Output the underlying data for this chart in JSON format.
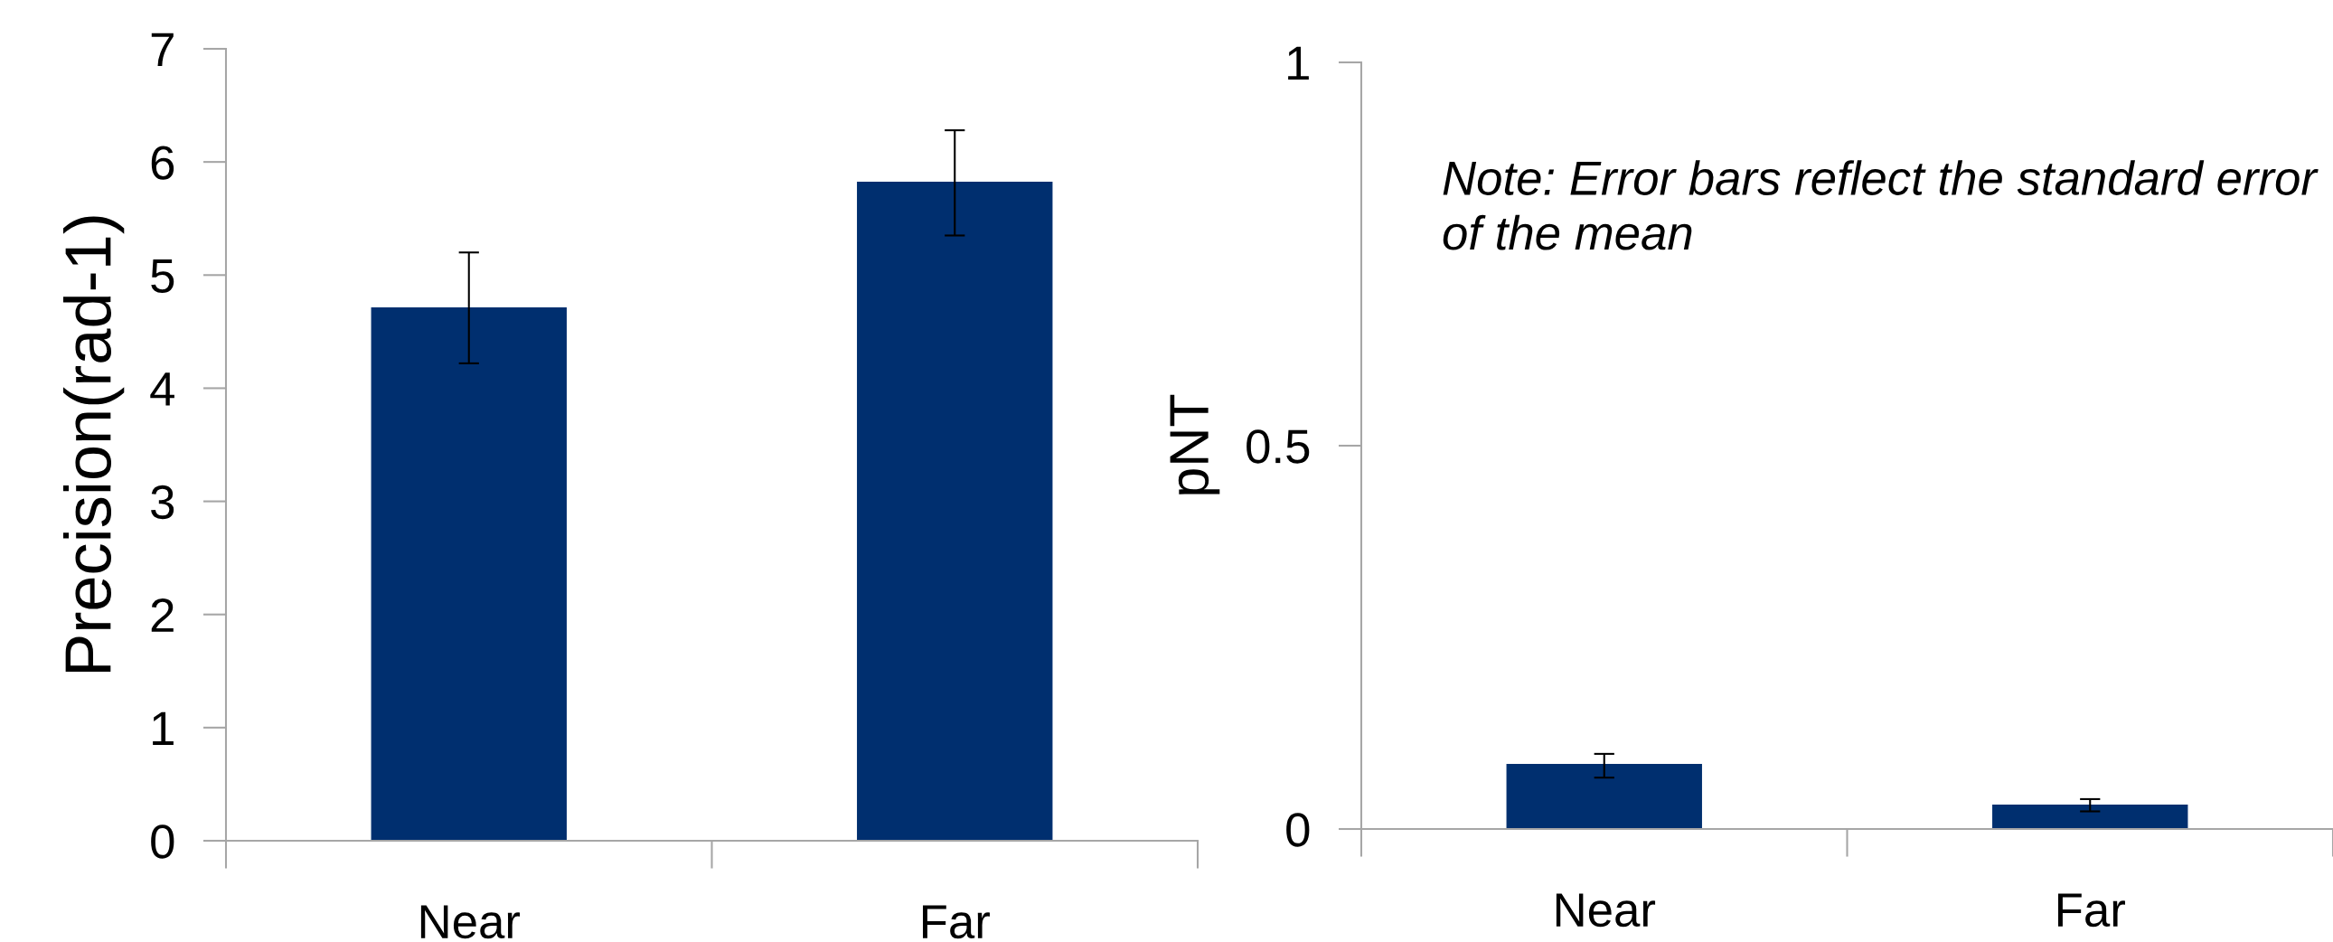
{
  "chart_data": [
    {
      "type": "bar",
      "ylabel": "Precision(rad-1)",
      "categories": [
        "Near",
        "Far"
      ],
      "values": [
        4.71,
        5.82
      ],
      "errors": [
        [
          4.22,
          5.2
        ],
        [
          5.35,
          6.28
        ]
      ],
      "color": "#002f6f",
      "ylim": [
        0,
        7
      ],
      "yticks": [
        0,
        1,
        2,
        3,
        4,
        5,
        6,
        7
      ],
      "grid": false
    },
    {
      "type": "bar",
      "ylabel": "pNT",
      "categories": [
        "Near",
        "Far"
      ],
      "values": [
        0.084,
        0.031
      ],
      "errors": [
        [
          0.067,
          0.098
        ],
        [
          0.023,
          0.039
        ]
      ],
      "color": "#002f6f",
      "ylim": [
        0,
        1
      ],
      "yticks": [
        0,
        0.5,
        1
      ],
      "grid": false,
      "annotations": [
        "Note: Error bars reflect the standard error of the mean"
      ]
    }
  ]
}
